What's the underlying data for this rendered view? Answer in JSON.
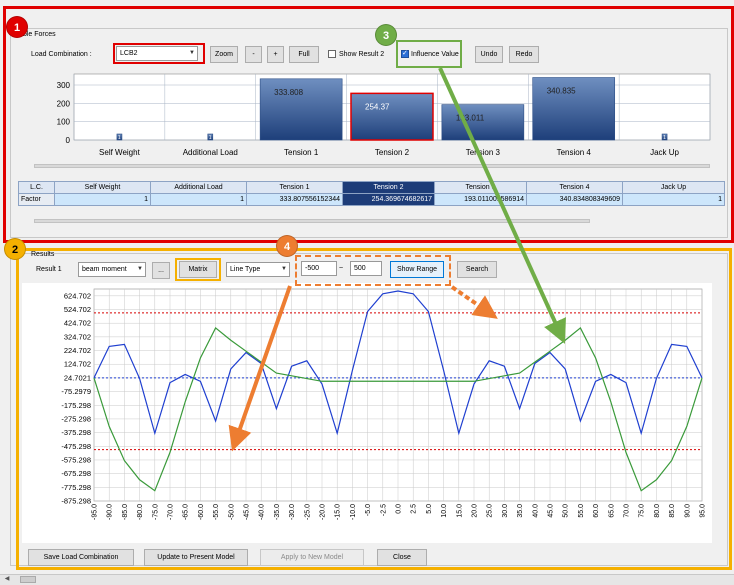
{
  "cable_forces": {
    "group_label": "Cable Forces",
    "load_combination_label": "Load Combination :",
    "load_combination_value": "LCB2",
    "zoom_label": "Zoom",
    "zoom_out_label": "-",
    "zoom_in_label": "+",
    "full_label": "Full",
    "show_result2_label": "Show Result 2",
    "influence_label": "Influence Value",
    "undo_label": "Undo",
    "redo_label": "Redo"
  },
  "table": {
    "corner": "L.C.",
    "columns": [
      "Self Weight",
      "Additional Load",
      "Tension 1",
      "Tension 2",
      "Tension 3",
      "Tension 4",
      "Jack Up"
    ],
    "row_label": "Factor",
    "values": [
      "1",
      "1",
      "333.807556152344",
      "254.369674682617",
      "193.011001586914",
      "340.834808349609",
      "1"
    ]
  },
  "results": {
    "group_label": "Results",
    "result1_label": "Result 1",
    "result_type_value": "beam moment",
    "ellipsis_label": "...",
    "matrix_label": "Matrix",
    "line_type_value": "Line Type",
    "range_min": "-500",
    "range_sep": "~",
    "range_max": "500",
    "show_range_label": "Show Range",
    "search_label": "Search"
  },
  "bottom_buttons": {
    "save": "Save Load Combination",
    "update": "Update to Present Model",
    "apply": "Apply to New Model",
    "close": "Close"
  },
  "callouts": [
    "1",
    "2",
    "3",
    "4"
  ],
  "colors": {
    "red": "#e00000",
    "yellow": "#f5b000",
    "green": "#70ad47",
    "orange": "#ed7d31",
    "blue_line": "#1f3fd0",
    "green_line": "#3a9a3a"
  },
  "chart_data": [
    {
      "type": "bar",
      "categories": [
        "Self Weight",
        "Additional Load",
        "Tension 1",
        "Tension 2",
        "Tension 3",
        "Tension 4",
        "Jack Up"
      ],
      "values": [
        1,
        1,
        333.808,
        254.37,
        193.011,
        340.835,
        1
      ],
      "data_labels": [
        "1",
        "1",
        "333.808",
        "254.37",
        "193.011",
        "340.835",
        "1"
      ],
      "yticks": [
        "0",
        "100",
        "200",
        "300"
      ],
      "ylim": [
        0,
        360
      ],
      "selected_index": 3
    },
    {
      "type": "line",
      "x": [
        -95,
        -90,
        -85,
        -80,
        -75,
        -70,
        -65,
        -60,
        -55,
        -50,
        -45,
        -40,
        -35,
        -30,
        -25,
        -20,
        -15,
        -10,
        -5,
        -2.5,
        0,
        2.5,
        5,
        10,
        15,
        20,
        25,
        30,
        35,
        40,
        45,
        50,
        55,
        60,
        65,
        70,
        75,
        80,
        85,
        90,
        95
      ],
      "xticks": [
        "-95.0",
        "-90.0",
        "-85.0",
        "-80.0",
        "-75.0",
        "-70.0",
        "-65.0",
        "-60.0",
        "-55.0",
        "-50.0",
        "-45.0",
        "-40.0",
        "-35.0",
        "-30.0",
        "-25.0",
        "-20.0",
        "-15.0",
        "-10.0",
        "-5.0",
        "-2.5",
        "0.0",
        "2.5",
        "5.0",
        "10.0",
        "15.0",
        "20.0",
        "25.0",
        "30.0",
        "35.0",
        "40.0",
        "45.0",
        "50.0",
        "55.0",
        "60.0",
        "65.0",
        "70.0",
        "75.0",
        "80.0",
        "85.0",
        "90.0",
        "95.0"
      ],
      "yticks": [
        "624.702",
        "524.702",
        "424.702",
        "324.702",
        "224.702",
        "124.702",
        "24.7021",
        "-75.2979",
        "-175.298",
        "-275.298",
        "-375.298",
        "-475.298",
        "-575.298",
        "-675.298",
        "-775.298",
        "-875.298"
      ],
      "ylim": [
        -875.298,
        674.702
      ],
      "series": [
        {
          "color": "#1f3fd0",
          "values": [
            24.7,
            255,
            270,
            20,
            -380,
            -10,
            50,
            0,
            -290,
            90,
            210,
            130,
            -200,
            110,
            150,
            -20,
            -380,
            80,
            510,
            640,
            660,
            640,
            510,
            80,
            -380,
            -20,
            150,
            110,
            -200,
            130,
            210,
            90,
            -290,
            0,
            50,
            -10,
            -380,
            20,
            270,
            255,
            24.7
          ]
        },
        {
          "color": "#3a9a3a",
          "values": [
            24.7,
            -330,
            -580,
            -720,
            -800,
            -520,
            -150,
            170,
            390,
            300,
            220,
            140,
            60,
            40,
            20,
            0,
            0,
            0,
            0,
            0,
            0,
            0,
            0,
            0,
            0,
            0,
            20,
            40,
            60,
            140,
            220,
            300,
            390,
            170,
            -150,
            -520,
            -800,
            -720,
            -580,
            -330,
            24.7
          ]
        }
      ],
      "reference_lines": [
        500,
        24.7,
        -500
      ]
    }
  ]
}
